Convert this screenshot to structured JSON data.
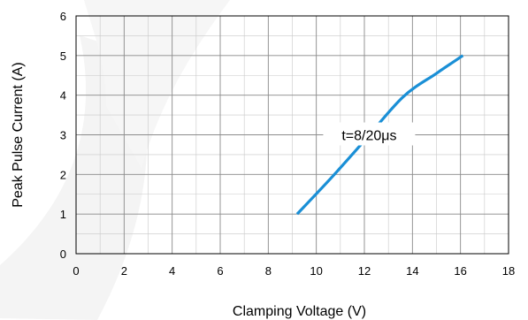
{
  "chart_data": {
    "type": "line",
    "title": "",
    "xlabel": "Clamping Voltage (V)",
    "ylabel": "Peak Pulse Current (A)",
    "xlim": [
      0,
      18
    ],
    "ylim": [
      0,
      6
    ],
    "xticks": [
      0,
      2,
      4,
      6,
      8,
      10,
      12,
      14,
      16,
      18
    ],
    "yticks": [
      0,
      1,
      2,
      3,
      4,
      5,
      6
    ],
    "x_minor_step": 1,
    "y_minor_step": 0.5,
    "grid": true,
    "series": [
      {
        "color": "#1a8fd6",
        "x": [
          9.2,
          10.6,
          12.0,
          13.6,
          15.0,
          16.1
        ],
        "y": [
          1.0,
          1.9,
          2.85,
          3.95,
          4.55,
          5.0
        ]
      }
    ],
    "annotations": [
      {
        "text": "t=8/20μs",
        "x": 12.2,
        "y": 3.0
      }
    ]
  }
}
